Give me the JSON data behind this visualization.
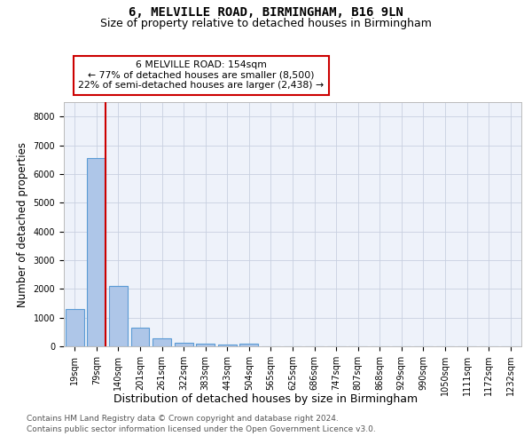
{
  "title1": "6, MELVILLE ROAD, BIRMINGHAM, B16 9LN",
  "title2": "Size of property relative to detached houses in Birmingham",
  "xlabel": "Distribution of detached houses by size in Birmingham",
  "ylabel": "Number of detached properties",
  "categories": [
    "19sqm",
    "79sqm",
    "140sqm",
    "201sqm",
    "261sqm",
    "322sqm",
    "383sqm",
    "443sqm",
    "504sqm",
    "565sqm",
    "625sqm",
    "686sqm",
    "747sqm",
    "807sqm",
    "868sqm",
    "929sqm",
    "990sqm",
    "1050sqm",
    "1111sqm",
    "1172sqm",
    "1232sqm"
  ],
  "values": [
    1300,
    6550,
    2100,
    650,
    290,
    130,
    85,
    60,
    80,
    0,
    0,
    0,
    0,
    0,
    0,
    0,
    0,
    0,
    0,
    0,
    0
  ],
  "bar_color": "#aec6e8",
  "bar_edge_color": "#5b9bd5",
  "vline_color": "#cc0000",
  "annotation_text": "6 MELVILLE ROAD: 154sqm\n← 77% of detached houses are smaller (8,500)\n22% of semi-detached houses are larger (2,438) →",
  "annotation_box_color": "#ffffff",
  "annotation_box_edge": "#cc0000",
  "ylim": [
    0,
    8500
  ],
  "yticks": [
    0,
    1000,
    2000,
    3000,
    4000,
    5000,
    6000,
    7000,
    8000
  ],
  "footer1": "Contains HM Land Registry data © Crown copyright and database right 2024.",
  "footer2": "Contains public sector information licensed under the Open Government Licence v3.0.",
  "plot_bg_color": "#eef2fa",
  "grid_color": "#c8d0e0",
  "title_fontsize": 10,
  "subtitle_fontsize": 9,
  "tick_fontsize": 7,
  "ylabel_fontsize": 8.5,
  "xlabel_fontsize": 9
}
